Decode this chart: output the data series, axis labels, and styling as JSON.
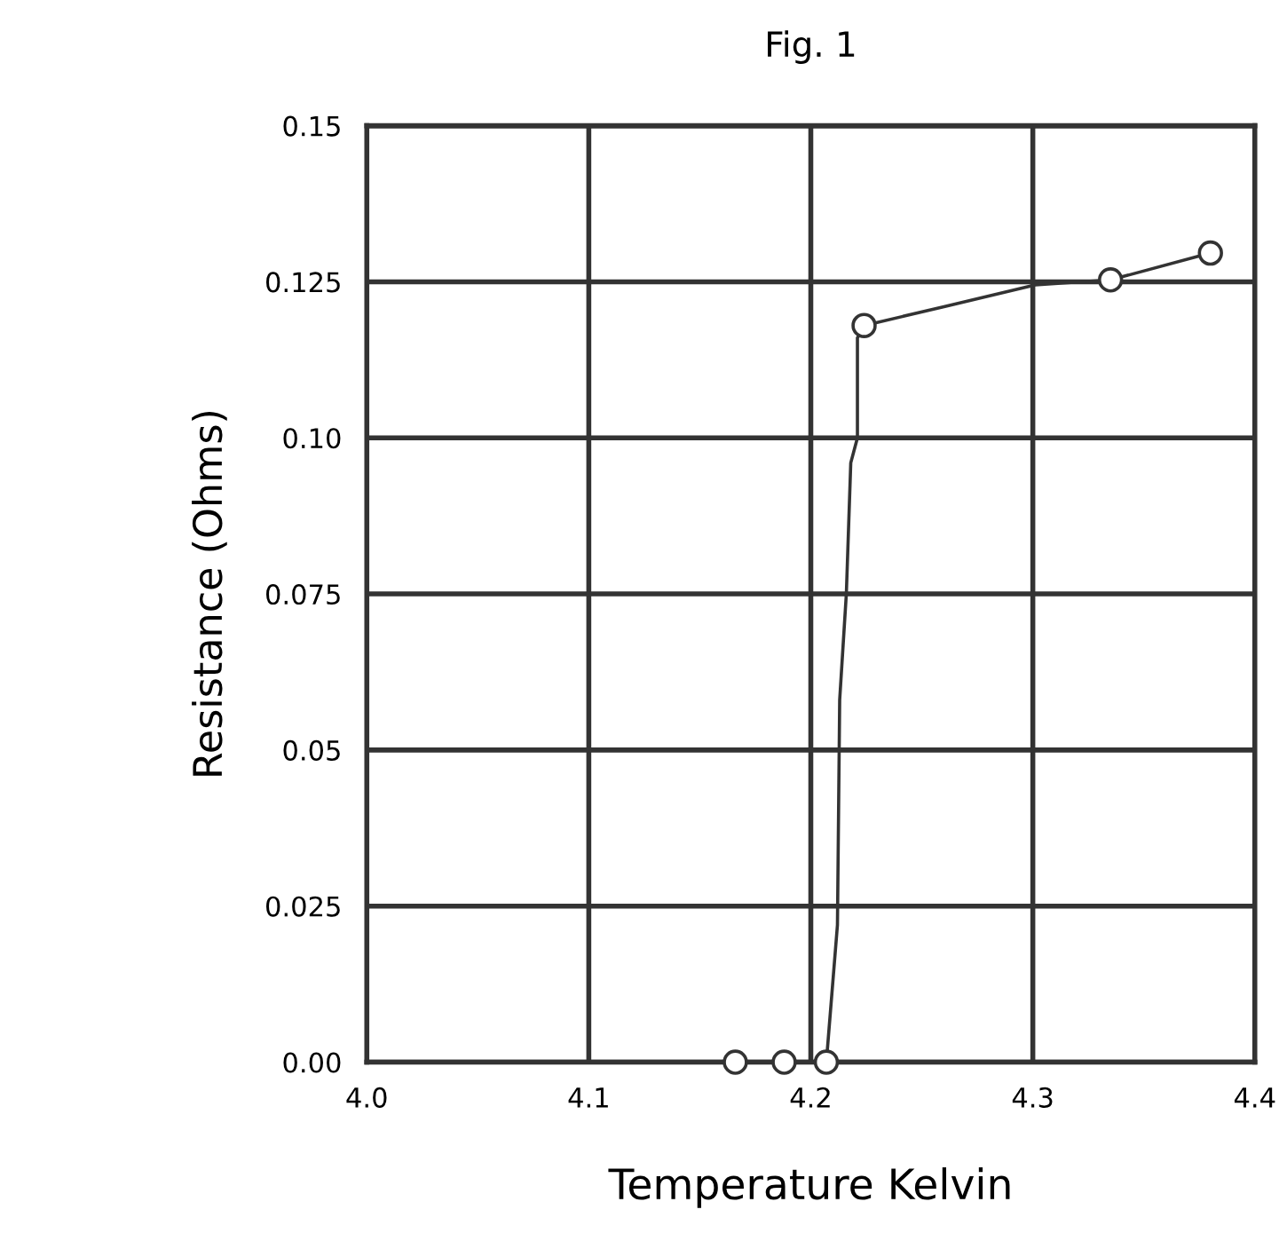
{
  "chart_data": {
    "type": "line",
    "title": "Fig. 1",
    "xlabel": "Temperature Kelvin",
    "ylabel": "Resistance (Ohms)",
    "xlim": [
      4.0,
      4.4
    ],
    "xticks": [
      {
        "value": 4.0,
        "label": "4.0"
      },
      4.1,
      4.2,
      4.3,
      4.4
    ],
    "ylim": [
      0,
      0.15
    ],
    "yticks": [
      {
        "value": 0,
        "label": "0.00"
      },
      0.025,
      0.05,
      0.075,
      {
        "value": 0.1,
        "label": "0.10"
      },
      0.125,
      0.15
    ],
    "grid": true,
    "legend": false,
    "series": [
      {
        "marker": "none",
        "color": "#333333",
        "x": [
          4.166,
          4.188,
          4.207,
          4.212,
          4.213,
          4.216,
          4.218,
          4.221,
          4.221,
          4.224,
          4.26,
          4.301,
          4.335,
          4.38
        ],
        "values": [
          0.0,
          0.0,
          0.0,
          0.022,
          0.058,
          0.075,
          0.096,
          0.1,
          0.116,
          0.118,
          0.121,
          0.1245,
          0.1253,
          0.1296
        ]
      },
      {
        "type": "scatter",
        "marker": "circle",
        "color": "#333333",
        "x": [
          4.166,
          4.188,
          4.207,
          4.224,
          4.335,
          4.38
        ],
        "values": [
          0.0,
          0.0,
          0.0,
          0.118,
          0.1253,
          0.1296
        ]
      }
    ]
  }
}
